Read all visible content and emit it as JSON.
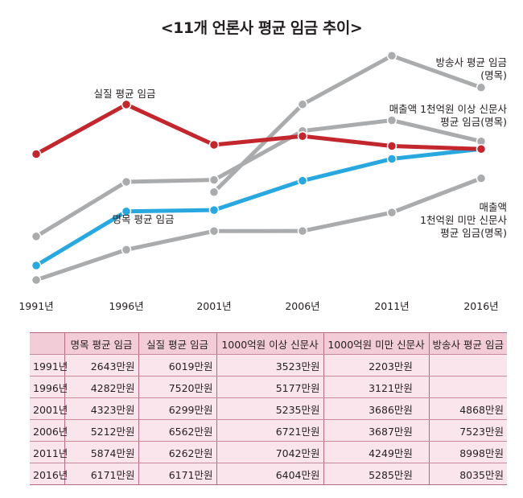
{
  "chart_data": {
    "type": "line",
    "title": "<11개 언론사 평균 임금 추이>",
    "categories": [
      "1991년",
      "1996년",
      "2001년",
      "2006년",
      "2011년",
      "2016년"
    ],
    "x": [
      1991,
      1996,
      2001,
      2006,
      2011,
      2016
    ],
    "series": [
      {
        "name": "실질 평균 임금",
        "values": [
          6019,
          7520,
          6299,
          6562,
          6262,
          6171
        ],
        "color": "#c1272d"
      },
      {
        "name": "명목 평균 임금",
        "values": [
          2643,
          4282,
          4323,
          5212,
          5874,
          6171
        ],
        "color": "#29a8e0"
      },
      {
        "name": "매출액 1천억원 이상 신문사 평균 임금(명목)",
        "values": [
          3523,
          5177,
          5235,
          6721,
          7042,
          6404
        ],
        "color": "#aaabad"
      },
      {
        "name": "매출액 1천억원 미만 신문사 평균 임금(명목)",
        "values": [
          2203,
          3121,
          3686,
          3687,
          4249,
          5285
        ],
        "color": "#aaabad"
      },
      {
        "name": "방송사 평균 임금(명목)",
        "values": [
          null,
          null,
          4868,
          7523,
          8998,
          8035
        ],
        "color": "#aaabad"
      }
    ],
    "series_label_lines": [
      [
        "실질 평균 임금"
      ],
      [
        "명목 평균 임금"
      ],
      [
        "매출액 1천억원 이상 신문사",
        "평균 임금(명목)"
      ],
      [
        "매출액",
        "1천억원 미만 신문사",
        "평균 임금(명목)"
      ],
      [
        "방송사 평균 임금",
        "(명목)"
      ]
    ],
    "unit": "만원",
    "grid": false,
    "legend": "inline labels"
  },
  "table": {
    "headers": [
      "",
      "명목 평균 임금",
      "실질 평균 임금",
      "1000억원 이상 신문사",
      "1000억원 미만 신문사",
      "방송사 평균 임금"
    ],
    "rows": [
      [
        "1991년",
        "2643만원",
        "6019만원",
        "3523만원",
        "2203만원",
        ""
      ],
      [
        "1996년",
        "4282만원",
        "7520만원",
        "5177만원",
        "3121만원",
        ""
      ],
      [
        "2001년",
        "4323만원",
        "6299만원",
        "5235만원",
        "3686만원",
        "4868만원"
      ],
      [
        "2006년",
        "5212만원",
        "6562만원",
        "6721만원",
        "3687만원",
        "7523만원"
      ],
      [
        "2011년",
        "5874만원",
        "6262만원",
        "7042만원",
        "4249만원",
        "8998만원"
      ],
      [
        "2016년",
        "6171만원",
        "6171만원",
        "6404만원",
        "5285만원",
        "8035만원"
      ]
    ]
  }
}
